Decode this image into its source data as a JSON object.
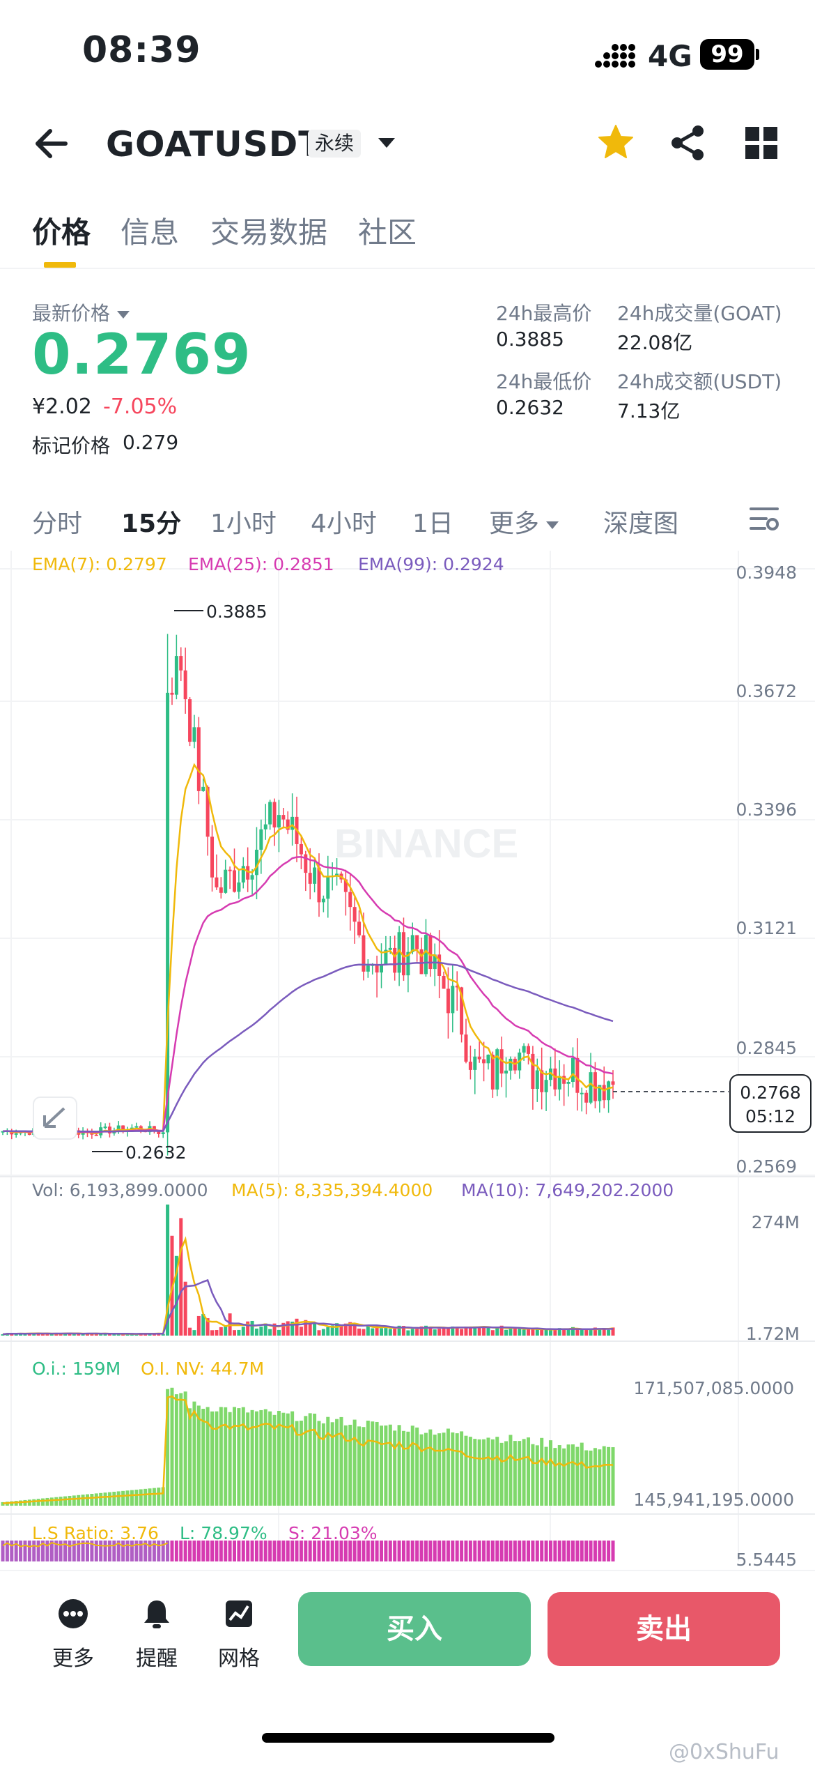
{
  "status_bar": {
    "time": "08:39",
    "network": "4G",
    "battery": "99"
  },
  "header": {
    "symbol": "GOATUSDT",
    "contract_tag": "永续"
  },
  "tabs": [
    "价格",
    "信息",
    "交易数据",
    "社区"
  ],
  "price_panel": {
    "last_price_label": "最新价格",
    "last_price": "0.2769",
    "cny_price": "¥2.02",
    "change_pct": "-7.05%",
    "mark_price_label": "标记价格",
    "mark_price": "0.279",
    "high_label": "24h最高价",
    "high": "0.3885",
    "low_label": "24h最低价",
    "low": "0.2632",
    "vol_label": "24h成交量(GOAT)",
    "vol": "22.08亿",
    "amount_label": "24h成交额(USDT)",
    "amount": "7.13亿"
  },
  "intervals": [
    "分时",
    "15分",
    "1小时",
    "4小时",
    "1日",
    "更多",
    "深度图"
  ],
  "active_interval": "15分",
  "chart_data": {
    "type": "candlestick",
    "ema_labels": {
      "ema7": "EMA(7): 0.2797",
      "ema25": "EMA(25): 0.2851",
      "ema99": "EMA(99): 0.2924"
    },
    "price_axis": [
      "0.3948",
      "0.3672",
      "0.3396",
      "0.3121",
      "0.2845",
      "0.2569"
    ],
    "ylim": [
      0.2569,
      0.3948
    ],
    "high_marker": "0.3885",
    "low_marker": "0.2632",
    "current_price": "0.2768",
    "countdown": "05:12",
    "watermark": "BINANCE",
    "colors": {
      "up": "#2ebd85",
      "down": "#f6465d",
      "ema7": "#f0b90b",
      "ema25": "#d63bb1",
      "ema99": "#7a5bbd"
    },
    "volume": {
      "vol_label": "Vol: 6,193,899.0000",
      "ma5_label": "MA(5): 8,335,394.4000",
      "ma10_label": "MA(10): 7,649,202.2000",
      "axis": [
        "274M",
        "1.72M"
      ]
    },
    "open_interest": {
      "oi_label": "O.i.: 159M",
      "oi_nv_label": "O.I. NV: 44.7M",
      "axis": [
        "171,507,085.0000",
        "145,941,195.0000"
      ]
    },
    "ls_ratio": {
      "ratio_label": "L.S Ratio: 3.76",
      "long_label": "L: 78.97%",
      "short_label": "S: 21.03%",
      "axis": [
        "5.5445"
      ]
    }
  },
  "bottom_bar": {
    "more": "更多",
    "alert": "提醒",
    "grid": "网格",
    "buy": "买入",
    "sell": "卖出"
  },
  "watermark_user": "@0xShuFu"
}
